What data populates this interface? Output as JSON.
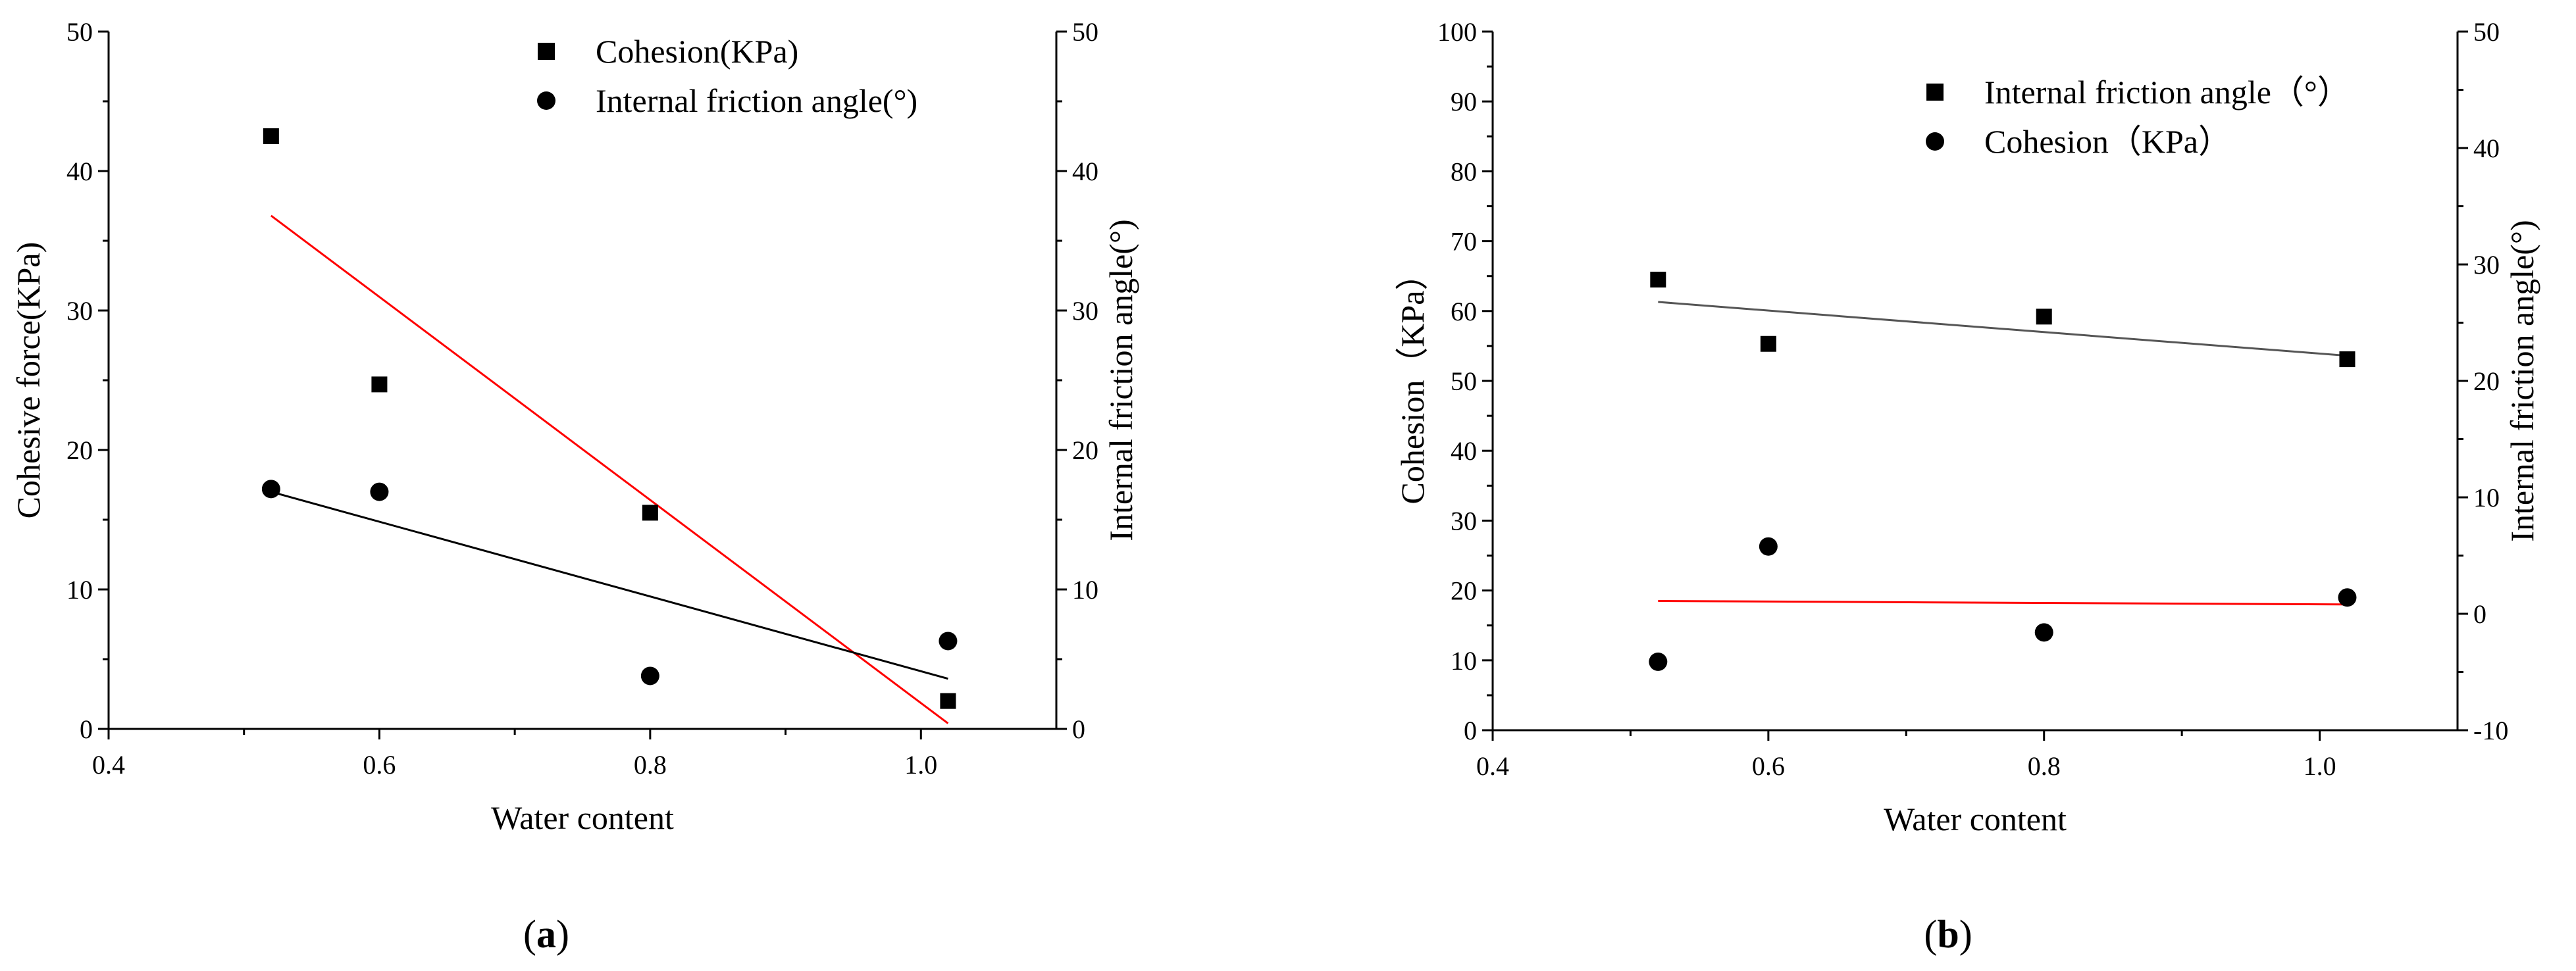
{
  "chart_data": [
    {
      "type": "scatter",
      "panel_label": "a",
      "xlabel": "Water content",
      "ylabel_left": "Cohesive force(KPa)",
      "ylabel_right": "Internal friction angle(°)",
      "xlim": [
        0.4,
        1.1
      ],
      "ylim_left": [
        0,
        50
      ],
      "ylim_right": [
        0,
        50
      ],
      "x_ticks": [
        "0.4",
        "0.6",
        "0.8",
        "1.0"
      ],
      "y_ticks_left": [
        "0",
        "10",
        "20",
        "30",
        "40",
        "50"
      ],
      "y_ticks_right": [
        "0",
        "10",
        "20",
        "30",
        "40",
        "50"
      ],
      "legend_position": "top-right",
      "series": [
        {
          "name": "Cohesion(KPa)",
          "marker": "square",
          "axis": "left",
          "x": [
            0.52,
            0.6,
            0.8,
            1.02
          ],
          "y": [
            42.5,
            24.7,
            15.5,
            2.0
          ],
          "fit": {
            "x": [
              0.52,
              1.02
            ],
            "y": [
              36.8,
              0.4
            ],
            "color": "#ff0000"
          }
        },
        {
          "name": "Internal friction angle(°)",
          "marker": "circle",
          "axis": "right",
          "x": [
            0.52,
            0.6,
            0.8,
            1.02
          ],
          "y": [
            17.2,
            17.0,
            3.8,
            6.3
          ],
          "fit": {
            "x": [
              0.52,
              1.02
            ],
            "y": [
              17.0,
              3.6
            ],
            "color": "#000000"
          }
        }
      ]
    },
    {
      "type": "scatter",
      "panel_label": "b",
      "xlabel": "Water content",
      "ylabel_left": "Cohesion（KPa）",
      "ylabel_right": "Internal friction angle(°)",
      "xlim": [
        0.4,
        1.1
      ],
      "ylim_left": [
        0,
        100
      ],
      "ylim_right": [
        -10,
        50
      ],
      "x_ticks": [
        "0.4",
        "0.6",
        "0.8",
        "1.0"
      ],
      "y_ticks_left": [
        "0",
        "10",
        "20",
        "30",
        "40",
        "50",
        "60",
        "70",
        "80",
        "90",
        "100"
      ],
      "y_ticks_right": [
        "-10",
        "0",
        "10",
        "20",
        "30",
        "40",
        "50"
      ],
      "legend_position": "top-right",
      "series": [
        {
          "name": "Internal friction angle（°）",
          "marker": "square",
          "axis": "left",
          "x": [
            0.52,
            0.6,
            0.8,
            1.02
          ],
          "y": [
            64.5,
            55.3,
            59.2,
            53.1
          ],
          "fit": {
            "x": [
              0.52,
              1.02
            ],
            "y": [
              61.3,
              53.6
            ],
            "color": "#555555"
          }
        },
        {
          "name": "Cohesion（KPa）",
          "marker": "circle",
          "axis": "left",
          "x": [
            0.52,
            0.6,
            0.8,
            1.02
          ],
          "y": [
            9.8,
            26.3,
            14.0,
            19.0
          ],
          "fit": {
            "x": [
              0.52,
              1.02
            ],
            "y": [
              18.5,
              18.0
            ],
            "color": "#ff0000"
          }
        }
      ]
    }
  ]
}
